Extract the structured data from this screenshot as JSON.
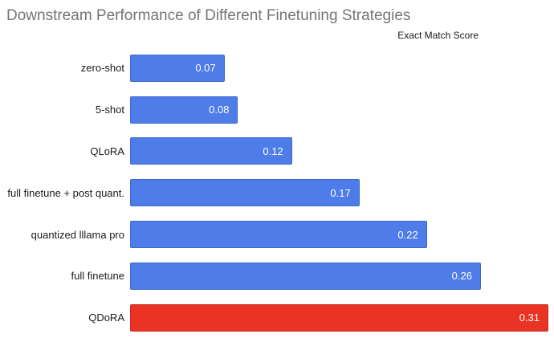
{
  "chart_data": {
    "type": "bar",
    "orientation": "horizontal",
    "title": "Downstream Performance of Different Finetuning Strategies",
    "axis_title": "Exact Match Score",
    "categories": [
      "zero-shot",
      "5-shot",
      "QLoRA",
      "full finetune + post quant.",
      "quantized lllama pro",
      "full finetune",
      "QDoRA"
    ],
    "values": [
      0.07,
      0.08,
      0.12,
      0.17,
      0.22,
      0.26,
      0.31
    ],
    "value_labels": [
      "0.07",
      "0.08",
      "0.12",
      "0.17",
      "0.22",
      "0.26",
      "0.31"
    ],
    "bar_colors": [
      "#4e7ce8",
      "#4e7ce8",
      "#4e7ce8",
      "#4e7ce8",
      "#4e7ce8",
      "#4e7ce8",
      "#e93425"
    ],
    "default_bar_color": "#4e7ce8",
    "highlight_bar_color": "#e93425",
    "xlim": [
      0,
      0.31
    ],
    "grid": false,
    "legend": false,
    "value_label_position": "inside-end",
    "title_color": "#757575",
    "background_color": "#ffffff"
  }
}
